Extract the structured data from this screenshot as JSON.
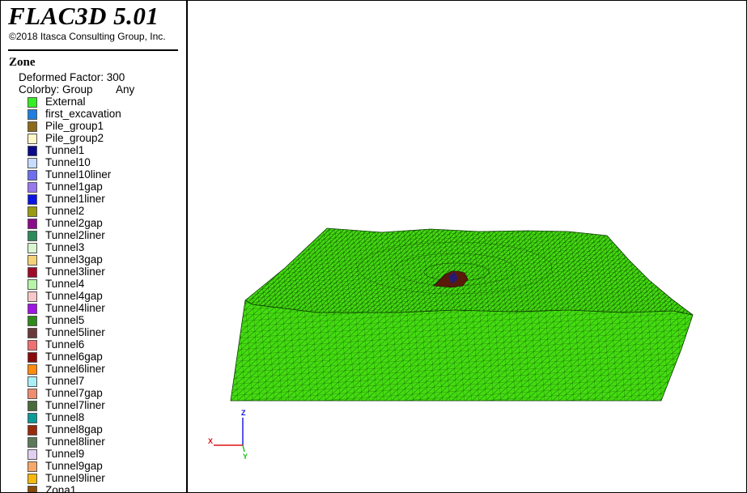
{
  "app": {
    "title": "FLAC3D 5.01",
    "copyright": "©2018 Itasca Consulting Group, Inc."
  },
  "legend": {
    "heading": "Zone",
    "deformed_factor_text": "Deformed Factor: 300",
    "colorby_text": "Colorby: Group",
    "colorby_scope": "Any",
    "groups": [
      {
        "name": "External",
        "color": "#33ee22"
      },
      {
        "name": "first_excavation",
        "color": "#1e7fe0"
      },
      {
        "name": "Pile_group1",
        "color": "#8c6a1a"
      },
      {
        "name": "Pile_group2",
        "color": "#fff7c8"
      },
      {
        "name": "Tunnel1",
        "color": "#0a0a8a"
      },
      {
        "name": "Tunnel10",
        "color": "#c8dcff"
      },
      {
        "name": "Tunnel10liner",
        "color": "#6e6ef0"
      },
      {
        "name": "Tunnel1gap",
        "color": "#9a78f0"
      },
      {
        "name": "Tunnel1liner",
        "color": "#0a14e6"
      },
      {
        "name": "Tunnel2",
        "color": "#9a9a10"
      },
      {
        "name": "Tunnel2gap",
        "color": "#8c0a8c"
      },
      {
        "name": "Tunnel2liner",
        "color": "#2e8a5a"
      },
      {
        "name": "Tunnel3",
        "color": "#d8f5d0"
      },
      {
        "name": "Tunnel3gap",
        "color": "#f5d278"
      },
      {
        "name": "Tunnel3liner",
        "color": "#a00a28"
      },
      {
        "name": "Tunnel4",
        "color": "#b8f5a8"
      },
      {
        "name": "Tunnel4gap",
        "color": "#f8c8c8"
      },
      {
        "name": "Tunnel4liner",
        "color": "#a014e6"
      },
      {
        "name": "Tunnel5",
        "color": "#2e8a1a"
      },
      {
        "name": "Tunnel5liner",
        "color": "#6a3a3a"
      },
      {
        "name": "Tunnel6",
        "color": "#f07070"
      },
      {
        "name": "Tunnel6gap",
        "color": "#8a0a0a"
      },
      {
        "name": "Tunnel6liner",
        "color": "#ff8c0a"
      },
      {
        "name": "Tunnel7",
        "color": "#a8f0f8"
      },
      {
        "name": "Tunnel7gap",
        "color": "#f08c70"
      },
      {
        "name": "Tunnel7liner",
        "color": "#4a6a3a"
      },
      {
        "name": "Tunnel8",
        "color": "#0a9a9a"
      },
      {
        "name": "Tunnel8gap",
        "color": "#9a2a0a"
      },
      {
        "name": "Tunnel8liner",
        "color": "#5a7a5a"
      },
      {
        "name": "Tunnel9",
        "color": "#e0d0f0"
      },
      {
        "name": "Tunnel9gap",
        "color": "#f5a868"
      },
      {
        "name": "Tunnel9liner",
        "color": "#f8b80a"
      },
      {
        "name": "Zona1",
        "color": "#8a4a0a"
      }
    ]
  },
  "viewport": {
    "model_color": "#44dd11",
    "mesh_color": "#0a3a00",
    "excavation_color": "#5a1a0a",
    "axes": {
      "x_label": "X",
      "y_label": "Y",
      "z_label": "Z",
      "x_color": "#e01010",
      "y_color": "#10c010",
      "z_color": "#1010e0"
    }
  }
}
